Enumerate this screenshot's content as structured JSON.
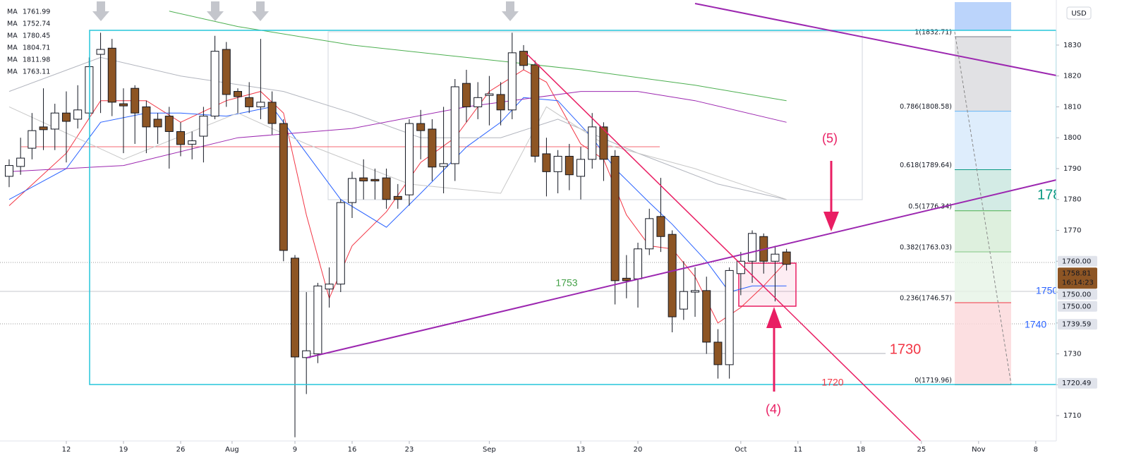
{
  "chart_data": {
    "type": "candlestick",
    "currency": "USD",
    "xlim": [
      -0.8,
      91.6
    ],
    "ylim": [
      1701.8,
      1844.6
    ],
    "xticks": [
      {
        "value": 5,
        "label": "12"
      },
      {
        "value": 10,
        "label": "19"
      },
      {
        "value": 15,
        "label": "26"
      },
      {
        "value": 19.5,
        "label": "Aug"
      },
      {
        "value": 25,
        "label": "9"
      },
      {
        "value": 30,
        "label": "16"
      },
      {
        "value": 35,
        "label": "23"
      },
      {
        "value": 42,
        "label": "Sep"
      },
      {
        "value": 50,
        "label": "13"
      },
      {
        "value": 55,
        "label": "20"
      },
      {
        "value": 64,
        "label": "Oct"
      },
      {
        "value": 69,
        "label": "11"
      },
      {
        "value": 74.5,
        "label": "18"
      },
      {
        "value": 79.8,
        "label": "25"
      },
      {
        "value": 84.8,
        "label": "Nov"
      },
      {
        "value": 89.8,
        "label": "8"
      }
    ],
    "yticks": [
      1710,
      1720,
      1730,
      1740,
      1750,
      1760,
      1770,
      1780,
      1790,
      1800,
      1810,
      1820,
      1830
    ],
    "up_color": "#ffffff",
    "down_color": "#8d5524",
    "x": [
      0,
      1,
      2,
      3,
      4,
      5,
      6,
      7,
      8,
      9,
      10,
      11,
      12,
      13,
      14,
      15,
      16,
      17,
      18,
      19,
      20,
      21,
      22,
      23,
      24,
      25,
      26,
      27,
      28,
      29,
      30,
      31,
      32,
      33,
      34,
      35,
      36,
      37,
      38,
      39,
      40,
      41,
      42,
      43,
      44,
      45,
      46,
      47,
      48,
      49,
      50,
      51,
      52,
      53,
      54,
      55,
      56,
      57,
      58,
      59,
      60,
      61,
      62,
      63,
      64,
      65,
      66,
      67,
      68
    ],
    "open": [
      1787.5,
      1790.7,
      1796.6,
      1803.5,
      1802.8,
      1808,
      1806,
      1808,
      1827,
      1829,
      1811,
      1816,
      1810,
      1806,
      1807,
      1802,
      1797.9,
      1800.5,
      1807,
      1828.6,
      1815,
      1813,
      1810,
      1811.5,
      1804.6,
      1761,
      1728.8,
      1730,
      1751,
      1752.6,
      1779,
      1787,
      1786.5,
      1787,
      1781,
      1781.5,
      1804.6,
      1802.8,
      1790.7,
      1791.6,
      1817.6,
      1810,
      1813.7,
      1814,
      1809,
      1828,
      1823.6,
      1794.8,
      1789,
      1794,
      1787.5,
      1793,
      1803.5,
      1794,
      1754.5,
      1754.3,
      1764,
      1774.5,
      1768.7,
      1744.5,
      1750,
      1750.5,
      1733.8,
      1726.5,
      1756,
      1760,
      1768,
      1760,
      1763
    ],
    "high": [
      1793,
      1800,
      1808,
      1816,
      1811,
      1815,
      1817,
      1826,
      1834,
      1832,
      1816,
      1817,
      1812,
      1808,
      1810,
      1805,
      1802,
      1810,
      1833,
      1831,
      1816,
      1818,
      1832,
      1815,
      1806,
      1762,
      1750,
      1753,
      1758,
      1780,
      1789,
      1793,
      1790,
      1790,
      1785,
      1806,
      1809,
      1806,
      1810,
      1819,
      1822,
      1818,
      1820,
      1818,
      1834,
      1830,
      1825,
      1800,
      1796,
      1798,
      1797,
      1808,
      1805,
      1796,
      1762,
      1766,
      1777,
      1787,
      1770,
      1760,
      1758,
      1755,
      1738,
      1758,
      1763,
      1770,
      1769,
      1765,
      1764
    ],
    "low": [
      1784,
      1788,
      1793,
      1796,
      1796,
      1792,
      1803,
      1806,
      1808,
      1807,
      1795,
      1798,
      1795,
      1798,
      1790,
      1794,
      1793,
      1792,
      1806,
      1810,
      1808,
      1808,
      1806,
      1801,
      1760,
      1703,
      1717,
      1727,
      1745,
      1750,
      1774,
      1780,
      1780,
      1777,
      1777,
      1778,
      1793,
      1786,
      1782,
      1786,
      1805,
      1806,
      1804,
      1804,
      1806,
      1822,
      1792,
      1781,
      1782,
      1783,
      1780,
      1790,
      1786,
      1746,
      1748,
      1745,
      1762,
      1763,
      1737,
      1741,
      1742,
      1730,
      1722,
      1722,
      1749,
      1753,
      1756,
      1747,
      1757
    ],
    "close": [
      1791,
      1793.4,
      1802.3,
      1802.6,
      1808,
      1805.3,
      1809,
      1823,
      1828.6,
      1811.5,
      1810.3,
      1808,
      1803.5,
      1803.5,
      1802,
      1797.8,
      1799,
      1807,
      1828,
      1814,
      1813.3,
      1810,
      1811.5,
      1804.6,
      1763.5,
      1729,
      1731,
      1752,
      1752.6,
      1779,
      1786.8,
      1786,
      1786,
      1780,
      1780,
      1804.6,
      1802.3,
      1790.5,
      1791.6,
      1816.5,
      1810,
      1813,
      1814.2,
      1809,
      1827.5,
      1823.4,
      1794,
      1789,
      1794,
      1788,
      1793,
      1803.5,
      1793,
      1753.7,
      1753.7,
      1764,
      1773.8,
      1768,
      1742,
      1750.2,
      1750.5,
      1733.8,
      1726.5,
      1757,
      1760,
      1769,
      1760,
      1762.3,
      1759
    ],
    "series": [
      {
        "name": "MA",
        "value": 1761.99,
        "color": "#f23645",
        "x": [
          0,
          5,
          8,
          12,
          15,
          19,
          22,
          24,
          26,
          28,
          30,
          33,
          36,
          39,
          42,
          45,
          47,
          50,
          52,
          54,
          56,
          58,
          60,
          62,
          64,
          66,
          68
        ],
        "values": [
          1778,
          1795,
          1812,
          1812,
          1805,
          1812,
          1815,
          1808,
          1775,
          1748,
          1765,
          1776,
          1792,
          1800,
          1815,
          1822,
          1818,
          1798,
          1793,
          1775,
          1765,
          1764,
          1755,
          1740,
          1745,
          1752,
          1760
        ]
      },
      {
        "name": "MA",
        "value": 1752.74,
        "color": "#2962ff",
        "x": [
          0,
          5,
          8,
          12,
          15,
          19,
          23,
          26,
          29,
          33,
          36,
          40,
          43,
          45,
          48,
          51,
          53,
          56,
          58,
          61,
          63,
          65,
          68
        ],
        "values": [
          1780,
          1790,
          1805,
          1808,
          1808,
          1807,
          1810,
          1795,
          1780,
          1771,
          1782,
          1797,
          1805,
          1813,
          1812,
          1800,
          1790,
          1779,
          1772,
          1760,
          1750,
          1752,
          1752
        ]
      },
      {
        "name": "MA",
        "value": 1780.45,
        "color": "#b2b5be",
        "x": [
          0,
          8,
          15,
          24,
          30,
          36,
          43,
          48,
          55,
          62,
          68
        ],
        "values": [
          1815,
          1826,
          1820,
          1815,
          1808,
          1800,
          1800,
          1806,
          1795,
          1785,
          1780
        ]
      },
      {
        "name": "MA",
        "value": 1804.71,
        "color": "#9c27b0",
        "x": [
          0,
          10,
          20,
          30,
          40,
          50,
          55,
          60,
          68
        ],
        "values": [
          1789,
          1791,
          1800,
          1803,
          1810,
          1815,
          1815,
          1812,
          1805
        ]
      },
      {
        "name": "MA",
        "value": 1811.98,
        "color": "#4caf50",
        "x": [
          14,
          20,
          30,
          40,
          50,
          60,
          68
        ],
        "values": [
          1841,
          1836,
          1830,
          1826,
          1822,
          1817,
          1812
        ]
      },
      {
        "name": "MA",
        "value": 1763.11,
        "color": "#c8c8c8",
        "x": [
          0,
          10,
          20,
          26,
          35,
          43,
          47,
          52,
          60,
          68
        ],
        "values": [
          1810,
          1793,
          1808,
          1798,
          1785,
          1782,
          1810,
          1798,
          1790,
          1780
        ]
      }
    ],
    "fib_levels": [
      {
        "value": 1832.71,
        "label": "1(1832.71)",
        "color": "#787b86"
      },
      {
        "value": 1808.58,
        "label": "0.786(1808.58)",
        "color": "#64b5f6"
      },
      {
        "value": 1789.64,
        "label": "0.618(1789.64)",
        "color": "#089981"
      },
      {
        "value": 1776.34,
        "label": "0.5(1776.34)",
        "color": "#4caf50"
      },
      {
        "value": 1763.03,
        "label": "0.382(1763.03)",
        "color": "#81c784"
      },
      {
        "value": 1746.57,
        "label": "0.236(1746.57)",
        "color": "#f23645"
      },
      {
        "value": 1719.96,
        "label": "0(1719.96)",
        "color": "#787b86"
      }
    ],
    "price_badges": [
      {
        "value": 1760,
        "label": "1760.00"
      },
      {
        "value": 1758.81,
        "label": "1758.81",
        "time": "16:14:23"
      },
      {
        "value": 1750,
        "label": "1750.00"
      },
      {
        "value": 1750,
        "label": "1750.00"
      },
      {
        "value": 1739.59,
        "label": "1739.59"
      },
      {
        "value": 1720.49,
        "label": "1720.49"
      }
    ],
    "annotations": [
      "(5)",
      "(4)",
      "1753",
      "1730",
      "1720",
      "1750",
      "1740",
      "178"
    ]
  }
}
